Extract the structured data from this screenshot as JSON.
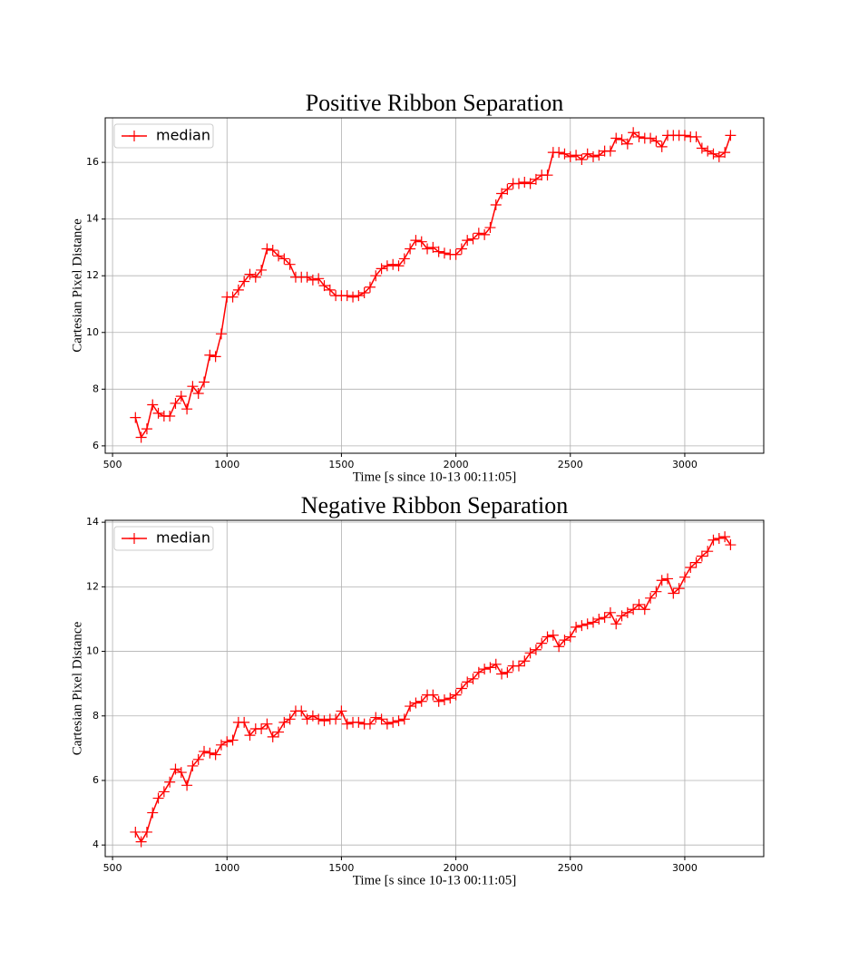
{
  "chart_data": [
    {
      "type": "line",
      "title": "Positive Ribbon Separation",
      "xlabel": "Time [s since 10-13 00:11:05]",
      "ylabel": "Cartesian Pixel Distance",
      "x": [
        600,
        625,
        650,
        675,
        700,
        725,
        750,
        775,
        800,
        825,
        850,
        875,
        900,
        925,
        950,
        975,
        1000,
        1025,
        1050,
        1075,
        1100,
        1125,
        1150,
        1175,
        1200,
        1225,
        1250,
        1275,
        1300,
        1325,
        1350,
        1375,
        1400,
        1425,
        1450,
        1475,
        1500,
        1525,
        1550,
        1575,
        1600,
        1625,
        1650,
        1675,
        1700,
        1725,
        1750,
        1775,
        1800,
        1825,
        1850,
        1875,
        1900,
        1925,
        1950,
        1975,
        2000,
        2025,
        2050,
        2075,
        2100,
        2125,
        2150,
        2175,
        2200,
        2225,
        2250,
        2275,
        2300,
        2325,
        2350,
        2375,
        2400,
        2425,
        2450,
        2475,
        2500,
        2525,
        2550,
        2575,
        2600,
        2625,
        2650,
        2675,
        2700,
        2725,
        2750,
        2775,
        2800,
        2825,
        2850,
        2875,
        2900,
        2925,
        2950,
        2975,
        3000,
        3025,
        3050,
        3075,
        3100,
        3125,
        3150,
        3175,
        3200
      ],
      "series": [
        {
          "name": "median",
          "color": "#ff0000",
          "values": [
            7.0,
            6.3,
            6.6,
            7.45,
            7.15,
            7.05,
            7.05,
            7.5,
            7.75,
            7.3,
            8.1,
            7.85,
            8.25,
            9.2,
            9.15,
            9.95,
            11.25,
            11.25,
            11.5,
            11.8,
            12.05,
            11.95,
            12.2,
            12.95,
            12.9,
            12.7,
            12.6,
            12.4,
            11.95,
            11.95,
            11.95,
            11.85,
            11.9,
            11.65,
            11.5,
            11.3,
            11.3,
            11.3,
            11.25,
            11.3,
            11.4,
            11.6,
            12.0,
            12.25,
            12.35,
            12.4,
            12.35,
            12.6,
            12.95,
            13.25,
            13.2,
            12.95,
            13.0,
            12.85,
            12.8,
            12.75,
            12.75,
            12.95,
            13.25,
            13.3,
            13.5,
            13.45,
            13.7,
            14.5,
            14.9,
            15.05,
            15.25,
            15.25,
            15.3,
            15.25,
            15.4,
            15.55,
            15.55,
            16.35,
            16.35,
            16.3,
            16.2,
            16.25,
            16.1,
            16.3,
            16.2,
            16.25,
            16.4,
            16.4,
            16.85,
            16.8,
            16.65,
            17.05,
            16.9,
            16.85,
            16.85,
            16.75,
            16.55,
            16.95,
            16.95,
            16.95,
            16.95,
            16.9,
            16.9,
            16.5,
            16.4,
            16.3,
            16.2,
            16.35,
            16.95
          ]
        }
      ],
      "xlim": [
        468,
        3345
      ],
      "ylim": [
        5.74,
        17.57
      ],
      "xticks": [
        500,
        1000,
        1500,
        2000,
        2500,
        3000
      ],
      "yticks": [
        6,
        8,
        10,
        12,
        14,
        16
      ],
      "grid": true,
      "legend": "upper left",
      "marker": "+"
    },
    {
      "type": "line",
      "title": "Negative Ribbon Separation",
      "xlabel": "Time [s since 10-13 00:11:05]",
      "ylabel": "Cartesian Pixel Distance",
      "x": [
        600,
        625,
        650,
        675,
        700,
        725,
        750,
        775,
        800,
        825,
        850,
        875,
        900,
        925,
        950,
        975,
        1000,
        1025,
        1050,
        1075,
        1100,
        1125,
        1150,
        1175,
        1200,
        1225,
        1250,
        1275,
        1300,
        1325,
        1350,
        1375,
        1400,
        1425,
        1450,
        1475,
        1500,
        1525,
        1550,
        1575,
        1600,
        1625,
        1650,
        1675,
        1700,
        1725,
        1750,
        1775,
        1800,
        1825,
        1850,
        1875,
        1900,
        1925,
        1950,
        1975,
        2000,
        2025,
        2050,
        2075,
        2100,
        2125,
        2150,
        2175,
        2200,
        2225,
        2250,
        2275,
        2300,
        2325,
        2350,
        2375,
        2400,
        2425,
        2450,
        2475,
        2500,
        2525,
        2550,
        2575,
        2600,
        2625,
        2650,
        2675,
        2700,
        2725,
        2750,
        2775,
        2800,
        2825,
        2850,
        2875,
        2900,
        2925,
        2950,
        2975,
        3000,
        3025,
        3050,
        3075,
        3100,
        3125,
        3150,
        3175,
        3200
      ],
      "series": [
        {
          "name": "median",
          "color": "#ff0000",
          "values": [
            4.4,
            4.1,
            4.4,
            5.0,
            5.45,
            5.65,
            5.95,
            6.35,
            6.25,
            5.85,
            6.45,
            6.65,
            6.9,
            6.85,
            6.8,
            7.1,
            7.2,
            7.25,
            7.8,
            7.8,
            7.4,
            7.6,
            7.6,
            7.75,
            7.35,
            7.5,
            7.8,
            7.9,
            8.15,
            8.15,
            7.9,
            8.0,
            7.9,
            7.85,
            7.9,
            7.9,
            8.15,
            7.75,
            7.8,
            7.8,
            7.75,
            7.75,
            7.95,
            7.9,
            7.75,
            7.8,
            7.85,
            7.9,
            8.3,
            8.4,
            8.45,
            8.65,
            8.65,
            8.45,
            8.5,
            8.55,
            8.65,
            8.85,
            9.05,
            9.15,
            9.35,
            9.45,
            9.5,
            9.6,
            9.3,
            9.35,
            9.55,
            9.55,
            9.7,
            9.95,
            10.05,
            10.25,
            10.45,
            10.5,
            10.15,
            10.35,
            10.45,
            10.75,
            10.8,
            10.85,
            10.9,
            11.0,
            11.05,
            11.2,
            10.85,
            11.1,
            11.2,
            11.3,
            11.45,
            11.3,
            11.65,
            11.85,
            12.2,
            12.25,
            11.8,
            11.95,
            12.3,
            12.6,
            12.75,
            12.95,
            13.1,
            13.45,
            13.5,
            13.55,
            13.3
          ]
        }
      ],
      "xlim": [
        468,
        3345
      ],
      "ylim": [
        3.64,
        14.06
      ],
      "xticks": [
        500,
        1000,
        1500,
        2000,
        2500,
        3000
      ],
      "yticks": [
        4,
        6,
        8,
        10,
        12,
        14
      ],
      "grid": true,
      "legend": "upper left",
      "marker": "+"
    }
  ]
}
